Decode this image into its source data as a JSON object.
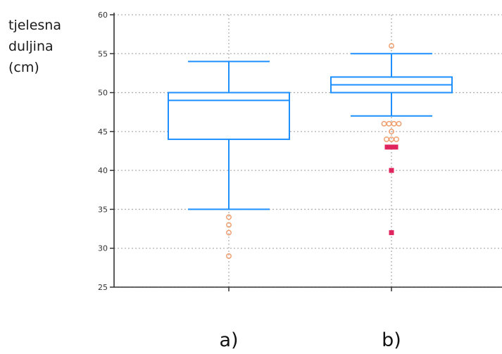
{
  "chart_data": {
    "type": "boxplot",
    "ylabel": [
      "tjelesna",
      "duljina",
      "(cm)"
    ],
    "ylim": [
      25,
      60
    ],
    "yticks": [
      25,
      30,
      35,
      40,
      45,
      50,
      55,
      60
    ],
    "grid": true,
    "categories": [
      "a)",
      "b)"
    ],
    "boxes": [
      {
        "category": "a)",
        "whisker_low": 35,
        "q1": 44,
        "median": 49,
        "q3": 50,
        "whisker_high": 54,
        "outliers": [
          34,
          33,
          32,
          29
        ],
        "far_outliers": []
      },
      {
        "category": "b)",
        "whisker_low": 47,
        "q1": 50,
        "median": 51,
        "q3": 52,
        "whisker_high": 55,
        "outliers": [
          56,
          46,
          46,
          46,
          46,
          45,
          44,
          44,
          44
        ],
        "far_outliers": [
          43,
          43,
          43,
          40,
          32
        ]
      }
    ],
    "colors": {
      "box": "#1e8fff",
      "outlier": "#f0a070",
      "far_outlier": "#e0245e",
      "grid": "#b0b0b0",
      "axis": "#333333"
    }
  }
}
